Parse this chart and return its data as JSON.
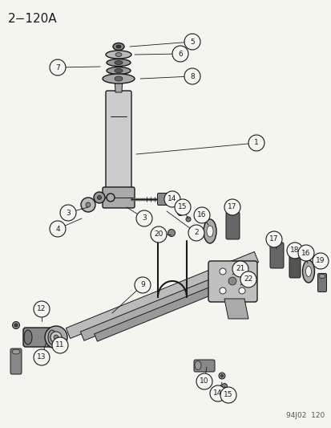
{
  "title": "2−120A",
  "footer": "94J02  120",
  "bg_color": "#f5f5f0",
  "line_color": "#1a1a1a",
  "gray_fill": "#aaaaaa",
  "light_gray": "#cccccc",
  "dark_gray": "#555555",
  "white": "#ffffff",
  "figsize": [
    4.14,
    5.33
  ],
  "dpi": 100
}
